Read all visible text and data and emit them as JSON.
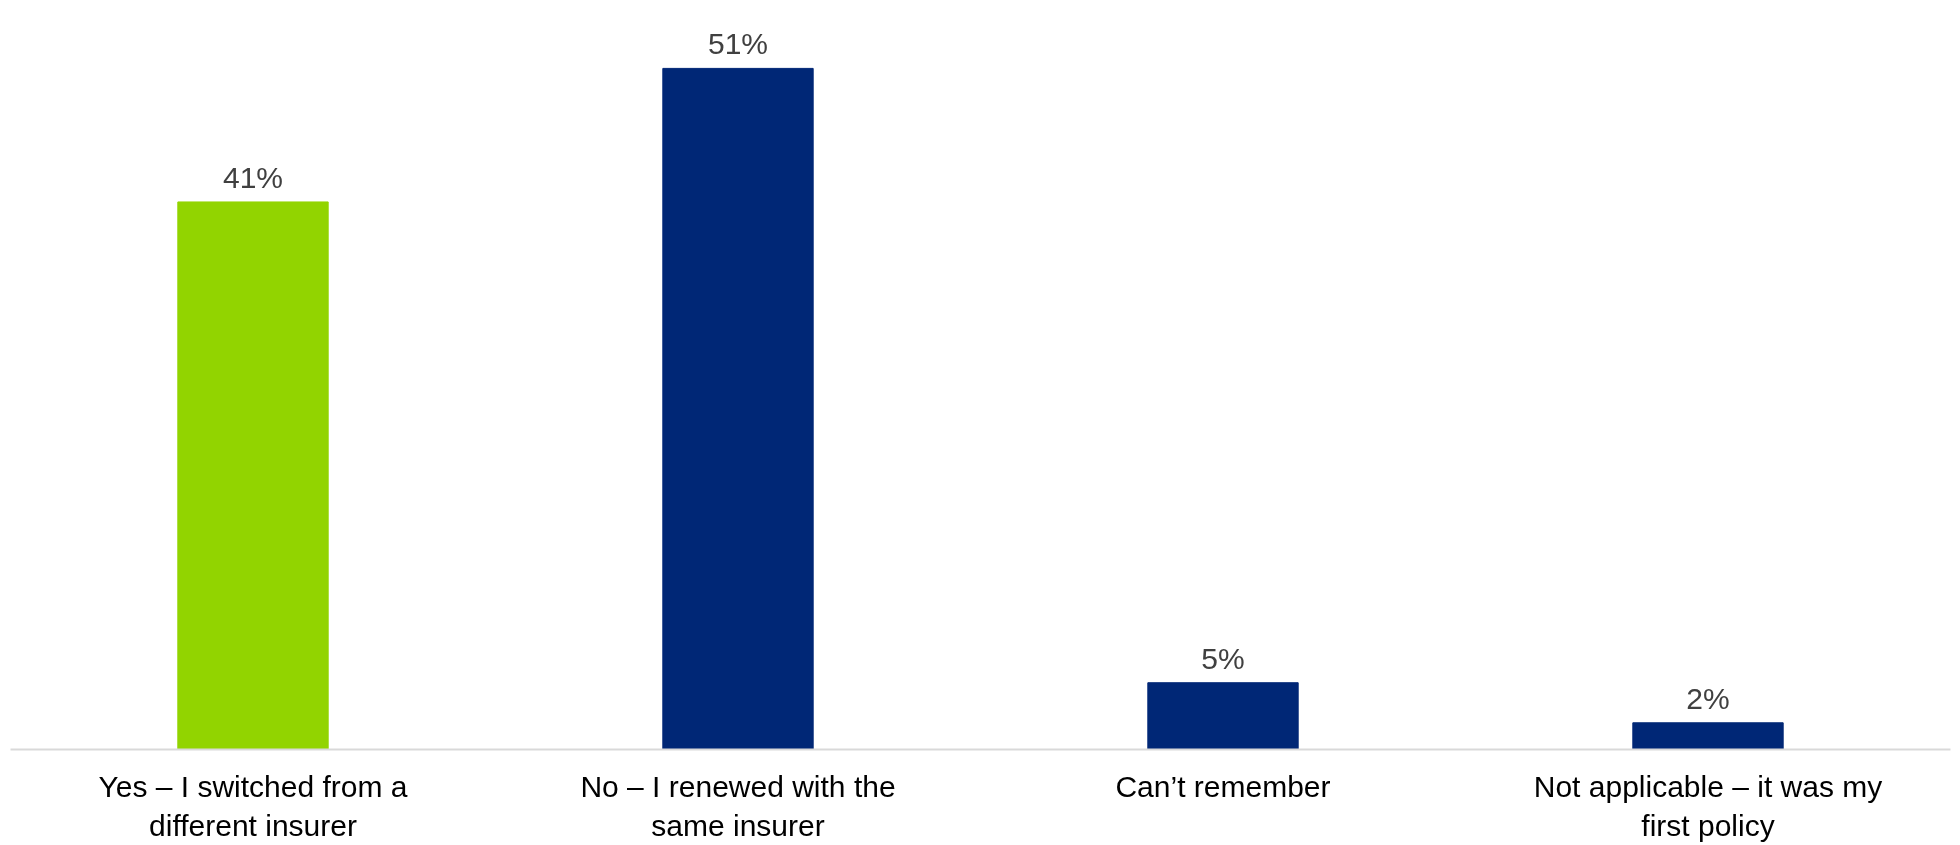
{
  "chart_data": {
    "type": "bar",
    "categories": [
      "Yes – I switched from a different insurer",
      "No – I renewed with the same insurer",
      "Can’t remember",
      "Not applicable – it was my first policy"
    ],
    "values": [
      41,
      51,
      5,
      2
    ],
    "colors": [
      "#92d400",
      "#002776",
      "#002776",
      "#002776"
    ],
    "value_labels": [
      "41%",
      "51%",
      "5%",
      "2%"
    ],
    "grid": false
  }
}
